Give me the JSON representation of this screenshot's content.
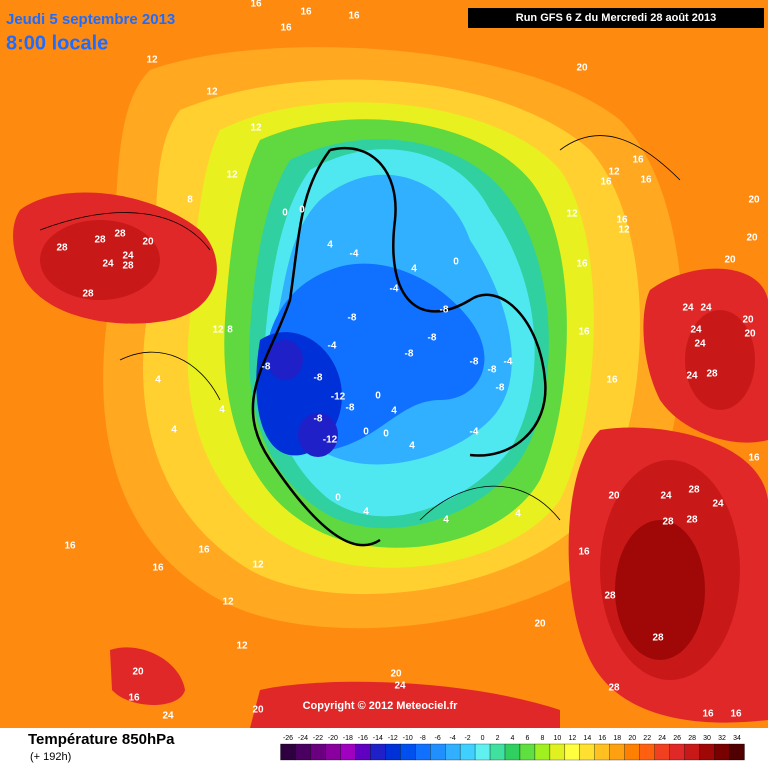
{
  "header": {
    "date": "Jeudi 5 septembre 2013",
    "time": "8:00 locale",
    "run": "Run GFS 6 Z du Mercredi 28 août 2013"
  },
  "footer": {
    "title": "Température 850hPa",
    "lead": "(+ 192h)",
    "copyright": "Copyright © 2012 Meteociel.fr"
  },
  "colorbar": {
    "ticks": [
      -26,
      -24,
      -22,
      -20,
      -18,
      -16,
      -14,
      -12,
      -10,
      -8,
      -6,
      -4,
      -2,
      0,
      2,
      4,
      6,
      8,
      10,
      12,
      14,
      16,
      18,
      20,
      22,
      24,
      26,
      28,
      30,
      32,
      34
    ],
    "colors": [
      "#2e0040",
      "#4a0060",
      "#6a007f",
      "#8a009f",
      "#a000c0",
      "#6000c0",
      "#2020c8",
      "#0030d8",
      "#0050f0",
      "#1070ff",
      "#2090ff",
      "#30b0ff",
      "#40d0ff",
      "#60f0f0",
      "#40e0a0",
      "#30d060",
      "#60e040",
      "#a0f020",
      "#e0f020",
      "#ffff40",
      "#ffe030",
      "#ffc020",
      "#ffa010",
      "#ff8000",
      "#ff6010",
      "#f04020",
      "#e02828",
      "#c81818",
      "#a00808",
      "#780000",
      "#500000"
    ]
  },
  "map": {
    "labels": [
      "16",
      "16",
      "16",
      "16",
      "12",
      "12",
      "12",
      "12",
      "8",
      "28",
      "28",
      "28",
      "24",
      "24",
      "28",
      "20",
      "28",
      "12",
      "8",
      "4",
      "4",
      "4",
      "0",
      "0",
      "4",
      "-4",
      "-4",
      "4",
      "0",
      "-8",
      "-8",
      "-8",
      "-8",
      "-8",
      "-8",
      "-4",
      "-12",
      "-8",
      "-8",
      "-12",
      "0",
      "4",
      "0",
      "0",
      "4",
      "0",
      "4",
      "-4",
      "-8",
      "-8",
      "-4",
      "-8",
      "4",
      "4",
      "16",
      "16",
      "16",
      "12",
      "12",
      "12",
      "20",
      "16",
      "20",
      "24",
      "20",
      "28",
      "28",
      "28",
      "24",
      "24",
      "28",
      "28",
      "28",
      "20",
      "16",
      "16",
      "16",
      "16",
      "12",
      "12",
      "16",
      "16",
      "16",
      "12",
      "16",
      "20",
      "20",
      "20",
      "20",
      "24",
      "24",
      "24",
      "24",
      "20",
      "20",
      "28",
      "24",
      "16",
      "16",
      "16",
      "24",
      "20"
    ]
  }
}
